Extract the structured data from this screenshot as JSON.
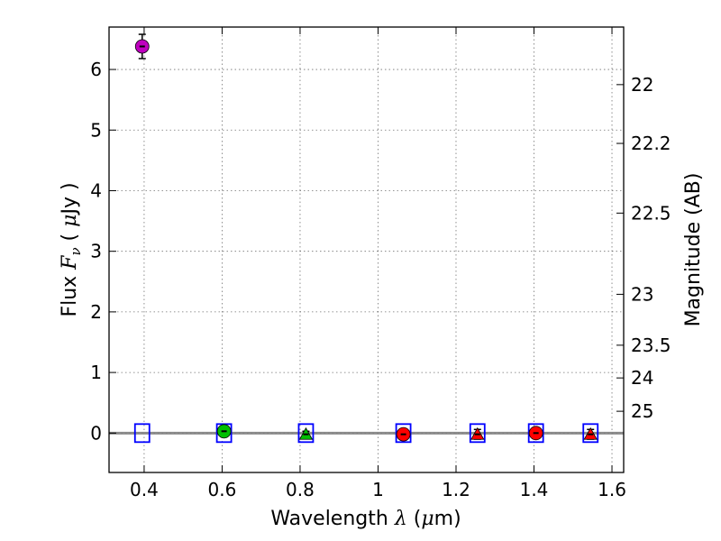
{
  "chart_data": {
    "type": "scatter",
    "xlabel": "Wavelength λ (μm)",
    "ylabel": "Flux F_ν ( μJy )",
    "ylabel_right": "Magnitude (AB)",
    "xlim": [
      0.31,
      1.63
    ],
    "ylim": [
      -0.65,
      6.7
    ],
    "xticks": [
      0.4,
      0.6,
      0.8,
      1.0,
      1.2,
      1.4,
      1.6
    ],
    "xtick_labels": [
      "0.4",
      "0.6",
      "0.8",
      "1",
      "1.2",
      "1.4",
      "1.6"
    ],
    "yticks": [
      0,
      1,
      2,
      3,
      4,
      5,
      6
    ],
    "ytick_labels": [
      "0",
      "1",
      "2",
      "3",
      "4",
      "5",
      "6"
    ],
    "right_ticks": [
      {
        "mag": "22",
        "flux": 5.75
      },
      {
        "mag": "22.2",
        "flux": 4.78
      },
      {
        "mag": "22.5",
        "flux": 3.63
      },
      {
        "mag": "23",
        "flux": 2.29
      },
      {
        "mag": "23.5",
        "flux": 1.45
      },
      {
        "mag": "24",
        "flux": 0.91
      },
      {
        "mag": "25",
        "flux": 0.36
      }
    ],
    "grid": true,
    "reference_line": {
      "y": 0.0,
      "color": "#808080"
    },
    "series": [
      {
        "name": "blue-open-squares",
        "marker": "square-open",
        "color": "#0000ff",
        "points": [
          {
            "x": 0.395,
            "y": 0.0
          },
          {
            "x": 0.605,
            "y": 0.0
          },
          {
            "x": 0.815,
            "y": 0.0
          },
          {
            "x": 1.065,
            "y": 0.0
          },
          {
            "x": 1.255,
            "y": 0.0
          },
          {
            "x": 1.405,
            "y": 0.0
          },
          {
            "x": 1.545,
            "y": 0.0
          }
        ]
      },
      {
        "name": "magenta-circle",
        "marker": "circle",
        "color": "#bf00bf",
        "points": [
          {
            "x": 0.395,
            "y": 6.38,
            "yerr": 0.2
          }
        ]
      },
      {
        "name": "green-circle",
        "marker": "circle",
        "color": "#00bf00",
        "points": [
          {
            "x": 0.605,
            "y": 0.03,
            "yerr": 0.03
          }
        ]
      },
      {
        "name": "green-triangle",
        "marker": "triangle",
        "color": "#00bf00",
        "points": [
          {
            "x": 0.815,
            "y": -0.02,
            "yerr": 0.05
          }
        ]
      },
      {
        "name": "red-circles",
        "marker": "circle",
        "color": "#ff0000",
        "points": [
          {
            "x": 1.065,
            "y": -0.02,
            "yerr": 0.05
          },
          {
            "x": 1.405,
            "y": 0.0,
            "yerr": 0.08
          }
        ]
      },
      {
        "name": "red-triangles",
        "marker": "triangle",
        "color": "#ff0000",
        "points": [
          {
            "x": 1.255,
            "y": -0.02,
            "yerr": 0.08
          },
          {
            "x": 1.545,
            "y": -0.02,
            "yerr": 0.08
          }
        ]
      }
    ]
  }
}
